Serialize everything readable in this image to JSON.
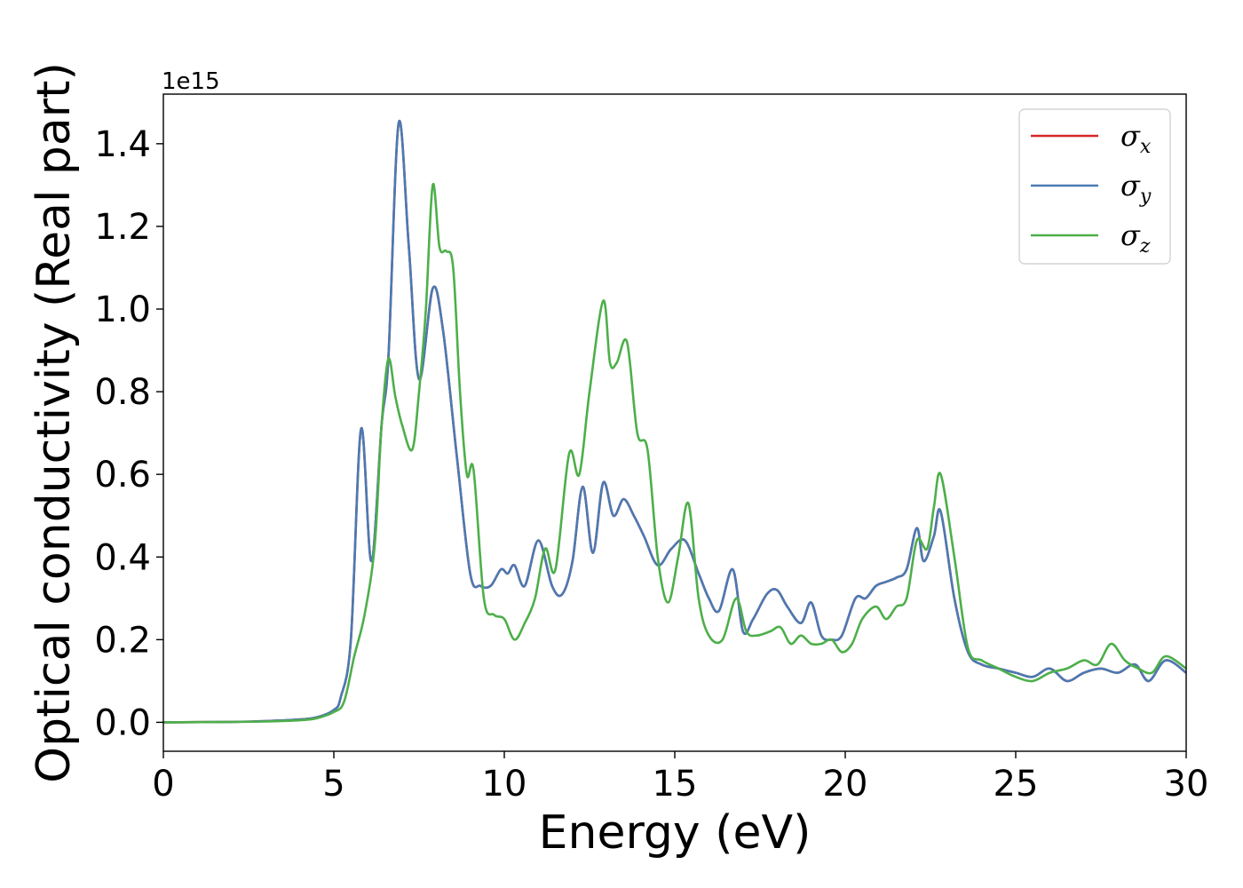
{
  "chart_data": {
    "type": "line",
    "xlabel": "Energy (eV)",
    "ylabel": "Optical conductivity (Real part)",
    "y_offset_label": "1e15",
    "xlim": [
      0,
      30
    ],
    "ylim": [
      -0.07,
      1.52
    ],
    "x_ticks": [
      0,
      5,
      10,
      15,
      20,
      25,
      30
    ],
    "y_ticks": [
      0.0,
      0.2,
      0.4,
      0.6,
      0.8,
      1.0,
      1.2,
      1.4
    ],
    "x_tick_labels": [
      "0",
      "5",
      "10",
      "15",
      "20",
      "25",
      "30"
    ],
    "y_tick_labels": [
      "0.0",
      "0.2",
      "0.4",
      "0.6",
      "0.8",
      "1.0",
      "1.2",
      "1.4"
    ],
    "grid": false,
    "legend_position": "top-right",
    "series": [
      {
        "name": "σx",
        "legend_symbol": "σ",
        "legend_subscript": "x",
        "color": "#d62728",
        "x": [
          0,
          2,
          3,
          4,
          4.5,
          5.0,
          5.2,
          5.5,
          5.8,
          6.1,
          6.4,
          6.6,
          6.9,
          7.2,
          7.5,
          7.9,
          8.2,
          8.6,
          9.0,
          9.3,
          9.6,
          9.9,
          10.1,
          10.3,
          10.6,
          11.0,
          11.4,
          11.7,
          12.0,
          12.3,
          12.6,
          12.9,
          13.2,
          13.5,
          13.8,
          14.1,
          14.5,
          14.9,
          15.3,
          15.7,
          16.0,
          16.3,
          16.7,
          17.0,
          17.3,
          17.7,
          18.0,
          18.3,
          18.7,
          19.0,
          19.3,
          19.6,
          19.9,
          20.3,
          20.6,
          20.9,
          21.2,
          21.5,
          21.8,
          22.1,
          22.3,
          22.6,
          22.8,
          23.2,
          23.6,
          24.0,
          24.5,
          25.0,
          25.5,
          26.0,
          26.5,
          27.0,
          27.5,
          28.0,
          28.5,
          28.9,
          29.4,
          30.0
        ],
        "values": [
          0,
          0.001,
          0.003,
          0.007,
          0.012,
          0.03,
          0.06,
          0.2,
          0.71,
          0.39,
          0.72,
          0.88,
          1.45,
          1.15,
          0.83,
          1.05,
          0.95,
          0.65,
          0.36,
          0.33,
          0.33,
          0.37,
          0.36,
          0.38,
          0.33,
          0.44,
          0.33,
          0.31,
          0.39,
          0.57,
          0.41,
          0.58,
          0.5,
          0.54,
          0.5,
          0.45,
          0.38,
          0.42,
          0.44,
          0.36,
          0.3,
          0.27,
          0.37,
          0.22,
          0.25,
          0.31,
          0.32,
          0.28,
          0.24,
          0.29,
          0.21,
          0.2,
          0.21,
          0.3,
          0.3,
          0.33,
          0.34,
          0.35,
          0.37,
          0.47,
          0.39,
          0.45,
          0.51,
          0.3,
          0.17,
          0.14,
          0.13,
          0.12,
          0.11,
          0.13,
          0.1,
          0.12,
          0.13,
          0.12,
          0.14,
          0.1,
          0.15,
          0.12
        ]
      },
      {
        "name": "σy",
        "legend_symbol": "σ",
        "legend_subscript": "y",
        "color": "#4a7ab3",
        "x": [
          0,
          2,
          3,
          4,
          4.5,
          5.0,
          5.2,
          5.5,
          5.8,
          6.1,
          6.4,
          6.6,
          6.9,
          7.2,
          7.5,
          7.9,
          8.2,
          8.6,
          9.0,
          9.3,
          9.6,
          9.9,
          10.1,
          10.3,
          10.6,
          11.0,
          11.4,
          11.7,
          12.0,
          12.3,
          12.6,
          12.9,
          13.2,
          13.5,
          13.8,
          14.1,
          14.5,
          14.9,
          15.3,
          15.7,
          16.0,
          16.3,
          16.7,
          17.0,
          17.3,
          17.7,
          18.0,
          18.3,
          18.7,
          19.0,
          19.3,
          19.6,
          19.9,
          20.3,
          20.6,
          20.9,
          21.2,
          21.5,
          21.8,
          22.1,
          22.3,
          22.6,
          22.8,
          23.2,
          23.6,
          24.0,
          24.5,
          25.0,
          25.5,
          26.0,
          26.5,
          27.0,
          27.5,
          28.0,
          28.5,
          28.9,
          29.4,
          30.0
        ],
        "values": [
          0,
          0.001,
          0.003,
          0.007,
          0.012,
          0.03,
          0.06,
          0.2,
          0.71,
          0.39,
          0.72,
          0.88,
          1.45,
          1.15,
          0.83,
          1.05,
          0.95,
          0.65,
          0.36,
          0.33,
          0.33,
          0.37,
          0.36,
          0.38,
          0.33,
          0.44,
          0.33,
          0.31,
          0.39,
          0.57,
          0.41,
          0.58,
          0.5,
          0.54,
          0.5,
          0.45,
          0.38,
          0.42,
          0.44,
          0.36,
          0.3,
          0.27,
          0.37,
          0.22,
          0.25,
          0.31,
          0.32,
          0.28,
          0.24,
          0.29,
          0.21,
          0.2,
          0.21,
          0.3,
          0.3,
          0.33,
          0.34,
          0.35,
          0.37,
          0.47,
          0.39,
          0.45,
          0.51,
          0.3,
          0.17,
          0.14,
          0.13,
          0.12,
          0.11,
          0.13,
          0.1,
          0.12,
          0.13,
          0.12,
          0.14,
          0.1,
          0.15,
          0.12
        ]
      },
      {
        "name": "σz",
        "legend_symbol": "σ",
        "legend_subscript": "z",
        "color": "#4daf4a",
        "x": [
          0,
          2,
          3,
          4,
          4.5,
          5.0,
          5.3,
          5.6,
          5.9,
          6.2,
          6.4,
          6.6,
          6.8,
          7.0,
          7.3,
          7.5,
          7.7,
          7.9,
          8.1,
          8.3,
          8.5,
          8.7,
          8.9,
          9.1,
          9.4,
          9.7,
          10.0,
          10.3,
          10.6,
          10.9,
          11.2,
          11.5,
          11.9,
          12.2,
          12.5,
          12.9,
          13.1,
          13.3,
          13.6,
          13.9,
          14.2,
          14.5,
          14.8,
          15.1,
          15.4,
          15.7,
          16.0,
          16.4,
          16.8,
          17.1,
          17.4,
          17.8,
          18.1,
          18.4,
          18.7,
          19.0,
          19.3,
          19.6,
          19.9,
          20.2,
          20.5,
          20.9,
          21.2,
          21.5,
          21.8,
          22.1,
          22.4,
          22.6,
          22.8,
          23.2,
          23.6,
          24.0,
          24.5,
          25.0,
          25.5,
          26.0,
          26.5,
          27.0,
          27.4,
          27.8,
          28.2,
          28.6,
          29.0,
          29.4,
          30.0
        ],
        "values": [
          0,
          0.001,
          0.002,
          0.005,
          0.01,
          0.025,
          0.05,
          0.16,
          0.26,
          0.43,
          0.72,
          0.88,
          0.79,
          0.72,
          0.66,
          0.8,
          1.0,
          1.3,
          1.15,
          1.14,
          1.1,
          0.8,
          0.6,
          0.61,
          0.3,
          0.26,
          0.25,
          0.2,
          0.24,
          0.3,
          0.42,
          0.37,
          0.65,
          0.6,
          0.8,
          1.02,
          0.87,
          0.87,
          0.92,
          0.7,
          0.66,
          0.4,
          0.29,
          0.4,
          0.53,
          0.3,
          0.21,
          0.2,
          0.3,
          0.22,
          0.21,
          0.22,
          0.23,
          0.19,
          0.21,
          0.19,
          0.19,
          0.2,
          0.17,
          0.19,
          0.25,
          0.28,
          0.25,
          0.28,
          0.3,
          0.44,
          0.42,
          0.52,
          0.6,
          0.4,
          0.18,
          0.15,
          0.13,
          0.11,
          0.1,
          0.12,
          0.13,
          0.15,
          0.14,
          0.19,
          0.15,
          0.13,
          0.12,
          0.16,
          0.13
        ]
      }
    ]
  }
}
